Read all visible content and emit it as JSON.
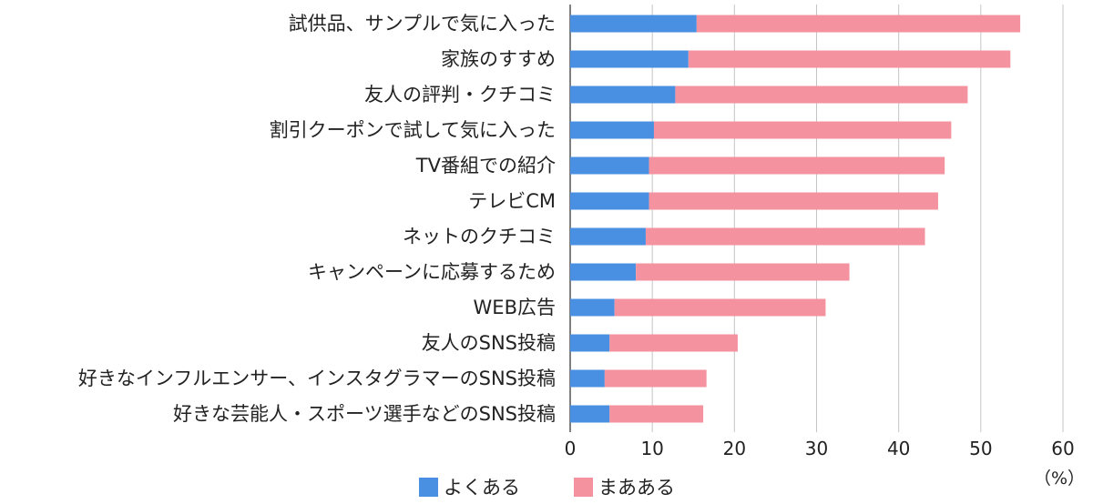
{
  "chart_data": {
    "type": "bar",
    "orientation": "horizontal",
    "stacked": true,
    "categories": [
      "試供品、サンプルで気に入った",
      "家族のすすめ",
      "友人の評判・クチコミ",
      "割引クーポンで試して気に入った",
      "TV番組での紹介",
      "テレビCM",
      "ネットのクチコミ",
      "キャンペーンに応募するため",
      "WEB広告",
      "友人のSNS投稿",
      "好きなインフルエンサー、インスタグラマーのSNS投稿",
      "好きな芸能人・スポーツ選手などのSNS投稿"
    ],
    "series": [
      {
        "name": "よくある",
        "color": "#4a90e2",
        "values": [
          15.4,
          14.4,
          12.8,
          10.2,
          9.6,
          9.6,
          9.2,
          8.0,
          5.4,
          4.8,
          4.2,
          4.8
        ]
      },
      {
        "name": "まあある",
        "color": "#f4939f",
        "values": [
          39.4,
          39.2,
          35.6,
          36.2,
          36.0,
          35.2,
          34.0,
          26.0,
          25.7,
          15.6,
          12.4,
          11.4
        ]
      }
    ],
    "xlim": [
      0,
      60
    ],
    "xticks": [
      "0",
      "10",
      "20",
      "30",
      "40",
      "50",
      "60"
    ],
    "unit": "（%）",
    "grid": true,
    "legend_position": "bottom"
  }
}
